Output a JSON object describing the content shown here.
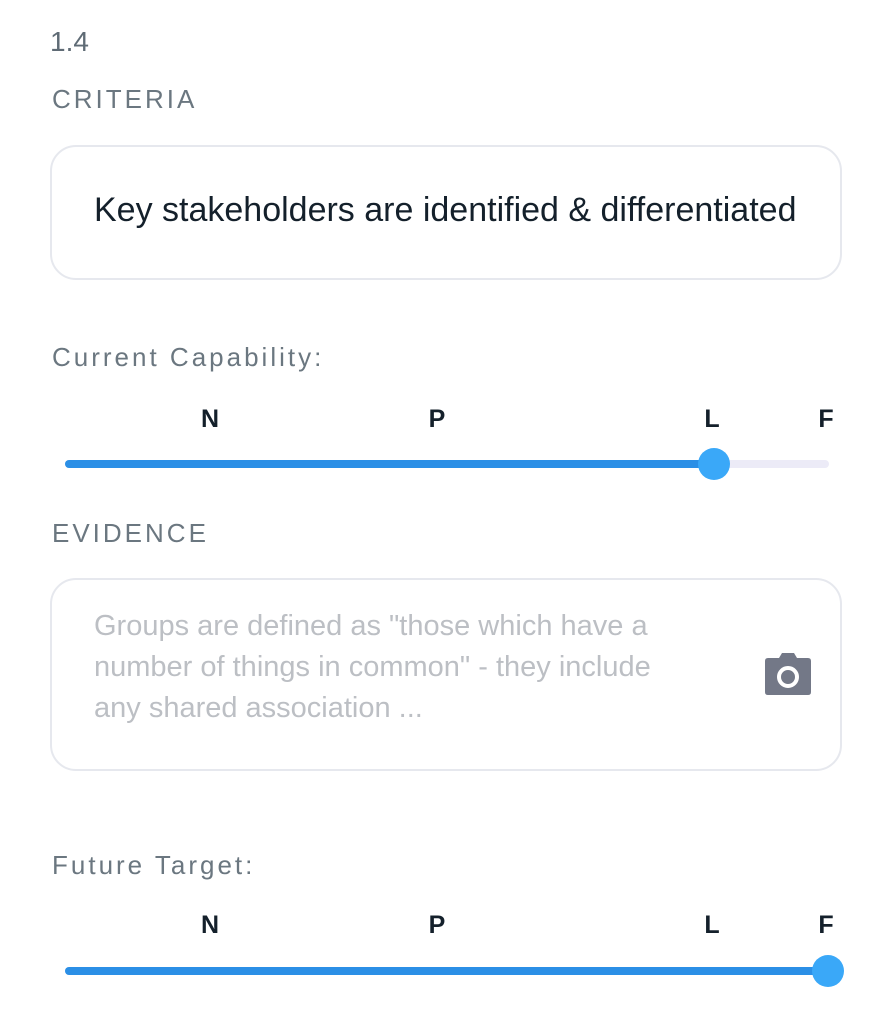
{
  "item_number": "1.4",
  "criteria": {
    "label": "CRITERIA",
    "value": "Key stakeholders are identified & differentiated"
  },
  "current_capability": {
    "label": "Current Capability:",
    "levels": [
      "N",
      "P",
      "L",
      "F"
    ],
    "selected": "L"
  },
  "evidence": {
    "label": "EVIDENCE",
    "placeholder": "Groups are defined as \"those which have a number of things in common\" - they include any shared association ...",
    "icon": "camera-icon"
  },
  "future_target": {
    "label": "Future Target:",
    "levels": [
      "N",
      "P",
      "L",
      "F"
    ],
    "selected": "F"
  },
  "colors": {
    "accent": "#2b8fe6",
    "thumb": "#3aa8f8",
    "track": "#ecebf7"
  }
}
